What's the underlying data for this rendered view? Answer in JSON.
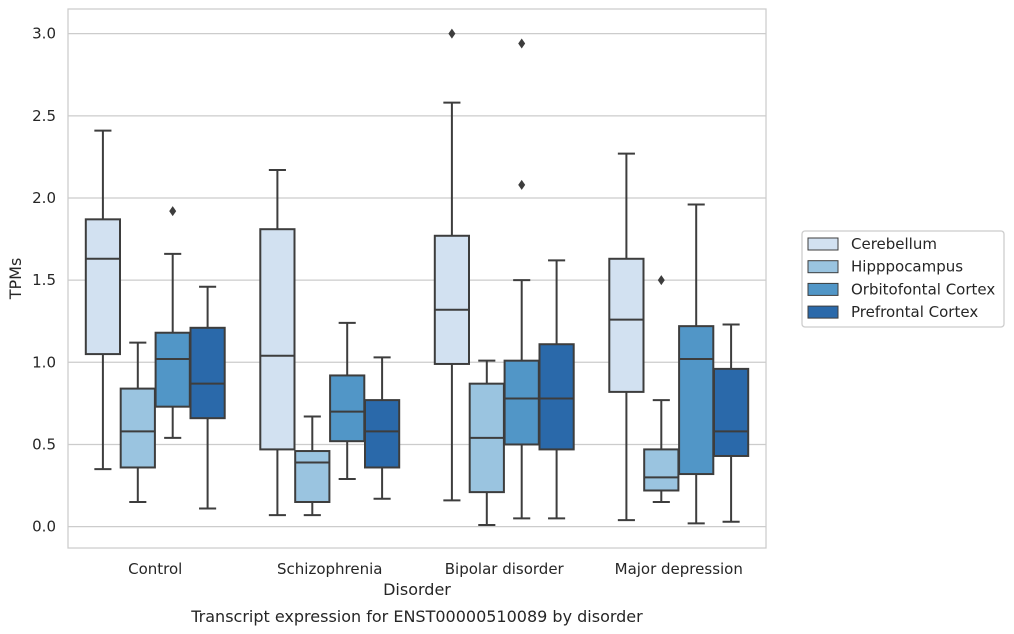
{
  "chart_data": {
    "type": "box",
    "title": "",
    "caption": "Transcript expression for ENST00000510089 by disorder",
    "xlabel": "Disorder",
    "ylabel": "TPMs",
    "ylim": [
      -0.13,
      3.15
    ],
    "yticks": [
      "0.0",
      "0.5",
      "1.0",
      "1.5",
      "2.0",
      "2.5",
      "3.0"
    ],
    "grid": "horizontal",
    "legend_position": "right",
    "categories": [
      "Control",
      "Schizophrenia",
      "Bipolar disorder",
      "Major depression"
    ],
    "series": [
      {
        "name": "Cerebellum",
        "color": "#d2e1f1",
        "boxes": [
          {
            "whisker_low": 0.35,
            "q1": 1.05,
            "median": 1.63,
            "q3": 1.87,
            "whisker_high": 2.41,
            "outliers": []
          },
          {
            "whisker_low": 0.07,
            "q1": 0.47,
            "median": 1.04,
            "q3": 1.81,
            "whisker_high": 2.17,
            "outliers": []
          },
          {
            "whisker_low": 0.16,
            "q1": 0.99,
            "median": 1.32,
            "q3": 1.77,
            "whisker_high": 2.58,
            "outliers": [
              3.0
            ]
          },
          {
            "whisker_low": 0.04,
            "q1": 0.82,
            "median": 1.26,
            "q3": 1.63,
            "whisker_high": 2.27,
            "outliers": []
          }
        ]
      },
      {
        "name": "Hipppocampus",
        "color": "#9ac4e0",
        "boxes": [
          {
            "whisker_low": 0.15,
            "q1": 0.36,
            "median": 0.58,
            "q3": 0.84,
            "whisker_high": 1.12,
            "outliers": []
          },
          {
            "whisker_low": 0.07,
            "q1": 0.15,
            "median": 0.39,
            "q3": 0.46,
            "whisker_high": 0.67,
            "outliers": []
          },
          {
            "whisker_low": 0.01,
            "q1": 0.21,
            "median": 0.54,
            "q3": 0.87,
            "whisker_high": 1.01,
            "outliers": []
          },
          {
            "whisker_low": 0.15,
            "q1": 0.22,
            "median": 0.3,
            "q3": 0.47,
            "whisker_high": 0.77,
            "outliers": [
              1.5
            ]
          }
        ]
      },
      {
        "name": "Orbitofontal Cortex",
        "color": "#5196c7",
        "boxes": [
          {
            "whisker_low": 0.54,
            "q1": 0.73,
            "median": 1.02,
            "q3": 1.18,
            "whisker_high": 1.66,
            "outliers": [
              1.92
            ]
          },
          {
            "whisker_low": 0.29,
            "q1": 0.52,
            "median": 0.7,
            "q3": 0.92,
            "whisker_high": 1.24,
            "outliers": []
          },
          {
            "whisker_low": 0.05,
            "q1": 0.5,
            "median": 0.78,
            "q3": 1.01,
            "whisker_high": 1.5,
            "outliers": [
              2.08,
              2.94
            ]
          },
          {
            "whisker_low": 0.02,
            "q1": 0.32,
            "median": 1.02,
            "q3": 1.22,
            "whisker_high": 1.96,
            "outliers": []
          }
        ]
      },
      {
        "name": "Prefrontal Cortex",
        "color": "#2a69aa",
        "boxes": [
          {
            "whisker_low": 0.11,
            "q1": 0.66,
            "median": 0.87,
            "q3": 1.21,
            "whisker_high": 1.46,
            "outliers": []
          },
          {
            "whisker_low": 0.17,
            "q1": 0.36,
            "median": 0.58,
            "q3": 0.77,
            "whisker_high": 1.03,
            "outliers": []
          },
          {
            "whisker_low": 0.05,
            "q1": 0.47,
            "median": 0.78,
            "q3": 1.11,
            "whisker_high": 1.62,
            "outliers": []
          },
          {
            "whisker_low": 0.03,
            "q1": 0.43,
            "median": 0.58,
            "q3": 0.96,
            "whisker_high": 1.23,
            "outliers": []
          }
        ]
      }
    ]
  }
}
